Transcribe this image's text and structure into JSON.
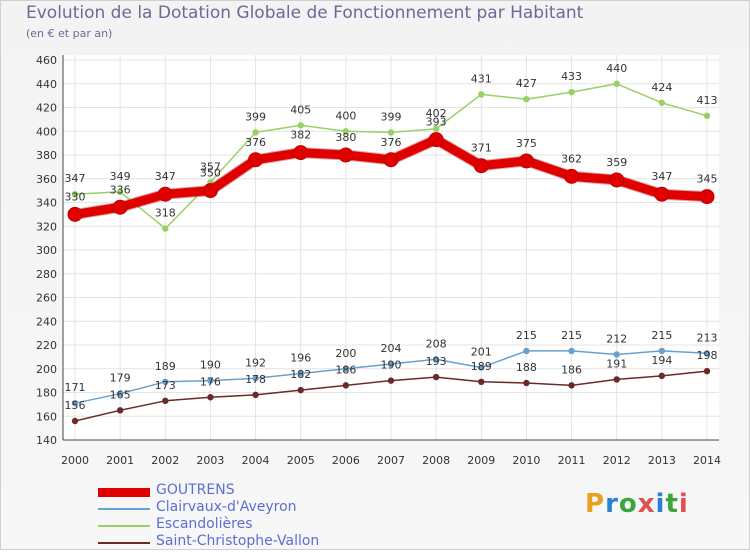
{
  "header": {
    "title": "Evolution de la Dotation Globale de Fonctionnement par Habitant",
    "subtitle": "(en € et par an)"
  },
  "logo": {
    "text": "Proxiti",
    "colors": [
      "#e8a020",
      "#2b7fd6",
      "#3aa53a",
      "#e05050"
    ]
  },
  "chart_data": {
    "type": "line",
    "x": [
      "2000",
      "2001",
      "2002",
      "2003",
      "2004",
      "2005",
      "2006",
      "2007",
      "2008",
      "2009",
      "2010",
      "2011",
      "2012",
      "2013",
      "2014"
    ],
    "ylim": [
      140,
      460
    ],
    "yticks": [
      140,
      160,
      180,
      200,
      220,
      240,
      260,
      280,
      300,
      320,
      340,
      360,
      380,
      400,
      420,
      440,
      460
    ],
    "grid": true,
    "legend_position": "bottom-left",
    "series": [
      {
        "name": "GOUTRENS",
        "color": "#e00000",
        "width": 9,
        "values": [
          330,
          336,
          347,
          350,
          376,
          382,
          380,
          376,
          393,
          371,
          375,
          362,
          359,
          347,
          345
        ]
      },
      {
        "name": "Clairvaux-d'Aveyron",
        "color": "#6aa0cc",
        "width": 1.5,
        "values": [
          171,
          179,
          189,
          190,
          192,
          196,
          200,
          204,
          208,
          201,
          215,
          215,
          212,
          215,
          213
        ]
      },
      {
        "name": "Escandolières",
        "color": "#99d066",
        "width": 1.5,
        "values": [
          347,
          349,
          318,
          357,
          399,
          405,
          400,
          399,
          402,
          431,
          427,
          433,
          440,
          424,
          413
        ]
      },
      {
        "name": "Saint-Christophe-Vallon",
        "color": "#6b2a2a",
        "width": 1.5,
        "values": [
          156,
          165,
          173,
          176,
          178,
          182,
          186,
          190,
          193,
          189,
          188,
          186,
          191,
          194,
          198
        ]
      }
    ]
  }
}
